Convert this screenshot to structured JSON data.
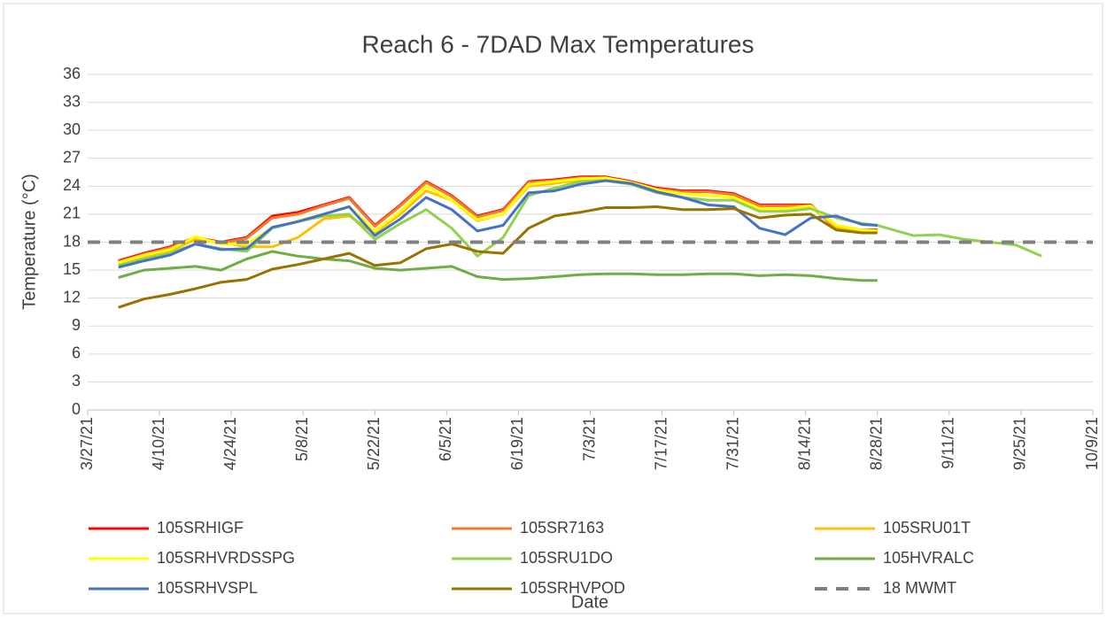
{
  "chart_data": {
    "type": "line",
    "title": "Reach 6 - 7DAD Max Temperatures",
    "x_label": "Date",
    "y_label": "Temperature (°C)",
    "x": [
      "4/2/21",
      "4/7/21",
      "4/12/21",
      "4/17/21",
      "4/22/21",
      "4/27/21",
      "5/2/21",
      "5/7/21",
      "5/12/21",
      "5/17/21",
      "5/22/21",
      "5/27/21",
      "6/1/21",
      "6/6/21",
      "6/11/21",
      "6/16/21",
      "6/21/21",
      "6/26/21",
      "7/1/21",
      "7/6/21",
      "7/11/21",
      "7/16/21",
      "7/21/21",
      "7/26/21",
      "7/31/21",
      "8/5/21",
      "8/10/21",
      "8/15/21",
      "8/20/21",
      "8/25/21",
      "8/28/21",
      "9/4/21",
      "9/9/21",
      "9/14/21",
      "9/19/21",
      "9/24/21",
      "9/29/21"
    ],
    "xlim": [
      "3/27/21",
      "10/9/21"
    ],
    "xticks": [
      "3/27/21",
      "4/10/21",
      "4/24/21",
      "5/8/21",
      "5/22/21",
      "6/5/21",
      "6/19/21",
      "7/3/21",
      "7/17/21",
      "7/31/21",
      "8/14/21",
      "8/28/21",
      "9/11/21",
      "9/25/21",
      "10/9/21"
    ],
    "ylim": [
      0,
      36
    ],
    "yticks": [
      0,
      3,
      6,
      9,
      12,
      15,
      18,
      21,
      24,
      27,
      30,
      33,
      36
    ],
    "grid": true,
    "series": [
      {
        "name": "105SRHIGF",
        "color": "#ff0000",
        "values": [
          16,
          16.8,
          17.5,
          18.5,
          18,
          18.5,
          20.8,
          21.2,
          22,
          22.8,
          19.8,
          22,
          24.5,
          23,
          20.8,
          21.5,
          24.5,
          24.7,
          25,
          25,
          24.5,
          23.8,
          23.5,
          23.5,
          23.2,
          22,
          22,
          22,
          19.5,
          19.3,
          19.3,
          null,
          null,
          null,
          null,
          null,
          null
        ]
      },
      {
        "name": "105SR7163",
        "color": "#ed7d31",
        "values": [
          15.9,
          16.7,
          17.4,
          18.4,
          17.9,
          18.4,
          20.6,
          21,
          21.9,
          22.7,
          19.7,
          21.9,
          24.4,
          22.9,
          20.7,
          21.4,
          24.4,
          24.6,
          24.9,
          24.9,
          24.4,
          23.7,
          23.4,
          23.4,
          23.1,
          21.9,
          21.9,
          21.9,
          19.4,
          19.2,
          19.2,
          null,
          null,
          null,
          null,
          null,
          null
        ]
      },
      {
        "name": "105SRU01T",
        "color": "#ffc000",
        "values": [
          15.7,
          16.5,
          17,
          18.3,
          18,
          17.5,
          17.5,
          18.5,
          20.5,
          20.8,
          19,
          21,
          23.5,
          22.5,
          20.3,
          21,
          24,
          24.3,
          24.7,
          24.8,
          24.3,
          23.5,
          23.2,
          23,
          22.8,
          21.6,
          21.6,
          21.8,
          19.6,
          19.2,
          19.1,
          null,
          null,
          null,
          null,
          null,
          null
        ]
      },
      {
        "name": "105SRHVRDSSPG",
        "color": "#ffff00",
        "values": [
          15.8,
          16.6,
          17.2,
          18.6,
          17.8,
          17.8,
          19.5,
          20.3,
          21,
          21.8,
          19.2,
          21.3,
          24,
          22.5,
          20.4,
          21,
          24.2,
          24.5,
          24.8,
          24.9,
          24.4,
          23.6,
          23.2,
          23,
          22.8,
          21.6,
          21.6,
          21.9,
          19.8,
          19.3,
          19.2,
          null,
          null,
          null,
          null,
          null,
          null
        ]
      },
      {
        "name": "105SRU1DO",
        "color": "#92d050",
        "values": [
          15.5,
          16.2,
          16.8,
          17.8,
          17.3,
          17,
          19.5,
          20.2,
          20.8,
          21,
          18.3,
          20,
          21.5,
          19.5,
          16.5,
          18.5,
          23,
          23.8,
          24.5,
          24.6,
          24.2,
          23.3,
          22.8,
          22.5,
          22.5,
          21.3,
          21.3,
          21.6,
          20.6,
          20,
          19.8,
          18.7,
          18.8,
          18.3,
          18,
          17.7,
          16.5
        ]
      },
      {
        "name": "105HVRALC",
        "color": "#70ad47",
        "values": [
          14.2,
          15,
          15.2,
          15.4,
          15,
          16.2,
          17,
          16.5,
          16.2,
          16,
          15.2,
          15,
          15.2,
          15.4,
          14.3,
          14,
          14.1,
          14.3,
          14.5,
          14.6,
          14.6,
          14.5,
          14.5,
          14.6,
          14.6,
          14.4,
          14.5,
          14.4,
          14.1,
          13.9,
          13.9,
          null,
          null,
          null,
          null,
          null,
          null
        ]
      },
      {
        "name": "105SRHVSPL",
        "color": "#4472c4",
        "values": [
          15.3,
          16,
          16.6,
          17.8,
          17.2,
          17.3,
          19.6,
          20.2,
          21,
          21.8,
          18.7,
          20.5,
          22.8,
          21.5,
          19.2,
          19.8,
          23.3,
          23.5,
          24.2,
          24.6,
          24.3,
          23.4,
          22.8,
          22,
          21.8,
          19.5,
          18.8,
          20.6,
          20.8,
          19.9,
          19.8,
          null,
          null,
          null,
          null,
          null,
          null
        ]
      },
      {
        "name": "105SRHVPOD",
        "color": "#997300",
        "values": [
          11,
          11.9,
          12.4,
          13,
          13.7,
          14,
          15.1,
          15.6,
          16.2,
          16.8,
          15.5,
          15.8,
          17.3,
          17.8,
          17,
          16.8,
          19.5,
          20.8,
          21.2,
          21.7,
          21.7,
          21.8,
          21.5,
          21.5,
          21.6,
          20.6,
          20.9,
          21,
          19.3,
          19,
          19,
          null,
          null,
          null,
          null,
          null,
          null
        ]
      }
    ],
    "threshold": {
      "name": "18 MWMT",
      "color": "#7f7f7f",
      "value": 18,
      "dashed": true
    }
  }
}
